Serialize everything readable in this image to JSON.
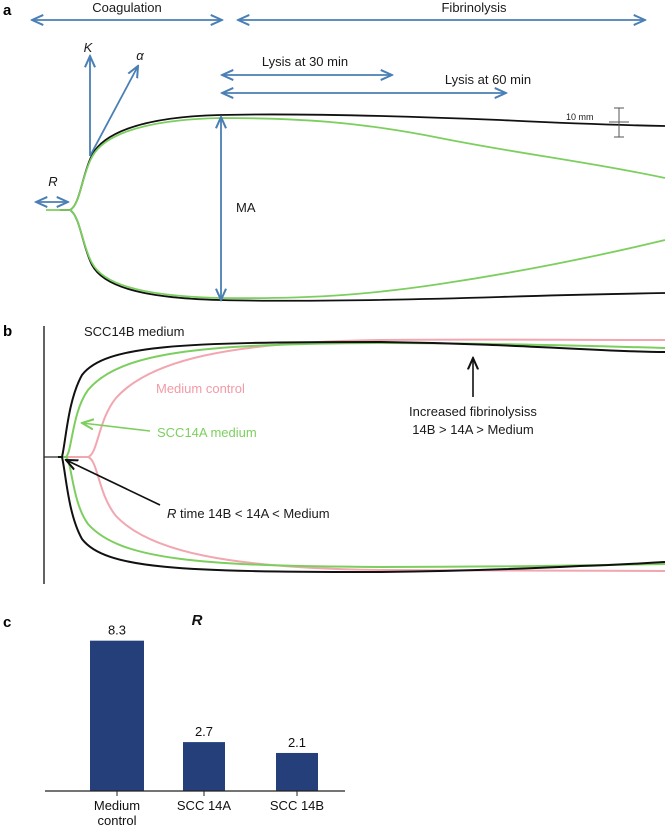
{
  "panels": {
    "a": {
      "letter": "a",
      "phase_left": "Coagulation",
      "phase_right": "Fibrinolysis",
      "K_label": "K",
      "alpha_label": "α",
      "R_label": "R",
      "MA_label": "MA",
      "lysis30_label": "Lysis at 30 min",
      "lysis60_label": "Lysis at 60 min",
      "scale_label": "10 mm"
    },
    "b": {
      "letter": "b",
      "scc14b_label": "SCC14B medium",
      "medium_control_label": "Medium control",
      "scc14a_label": "SCC14A medium",
      "fibrinolysis_line1": "Increased fibrinolysiss",
      "fibrinolysis_line2": "14B > 14A > Medium",
      "rtime_italic": "R",
      "rtime_rest": " time 14B < 14A < Medium"
    }
  },
  "colors": {
    "arrow_blue": "#4a7fb5",
    "bar_navy": "#243f7a",
    "trace_black": "#111111",
    "trace_green": "#7ccf5f",
    "trace_pink": "#f2a6b0",
    "label_pink": "#f29aa6",
    "label_green": "#7ccf5f"
  },
  "chart_data": {
    "type": "bar",
    "panel_letter": "c",
    "title": "R",
    "categories": [
      "Medium control",
      "SCC 14A",
      "SCC 14B"
    ],
    "category_lines": [
      [
        "Medium",
        "control"
      ],
      [
        "SCC 14A"
      ],
      [
        "SCC 14B"
      ]
    ],
    "values": [
      8.3,
      2.7,
      2.1
    ],
    "value_labels": [
      "8.3",
      "2.7",
      "2.1"
    ],
    "ylim": [
      0,
      9
    ],
    "xlabel": "",
    "ylabel": "",
    "grid": false,
    "legend": "none"
  }
}
